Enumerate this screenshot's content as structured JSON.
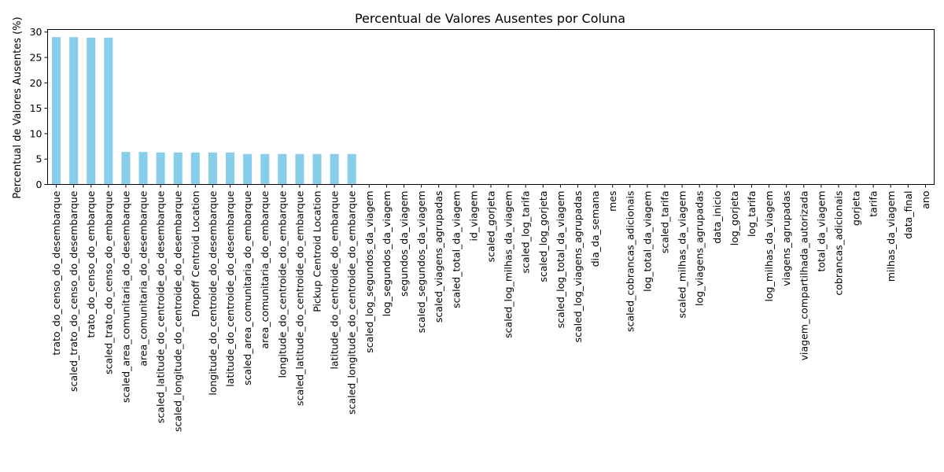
{
  "chart_data": {
    "type": "bar",
    "title": "Percentual de Valores Ausentes por Coluna",
    "xlabel": "",
    "ylabel": "Percentual de Valores Ausentes (%)",
    "ylim": [
      0,
      30.5
    ],
    "yticks": [
      0,
      5,
      10,
      15,
      20,
      25,
      30
    ],
    "grid": false,
    "bar_color": "#87CEEB",
    "categories": [
      "trato_do_censo_do_desembarque",
      "scaled_trato_do_censo_do_desembarque",
      "trato_do_censo_do_embarque",
      "scaled_trato_do_censo_do_embarque",
      "scaled_area_comunitaria_do_desembarque",
      "area_comunitaria_do_desembarque",
      "scaled_latitude_do_centroide_do_desembarque",
      "scaled_longitude_do_centroide_do_desembarque",
      "Dropoff Centroid Location",
      "longitude_do_centroide_do_desembarque",
      "latitude_do_centroide_do_desembarque",
      "scaled_area_comunitaria_do_embarque",
      "area_comunitaria_do_embarque",
      "longitude_do_centroide_do_embarque",
      "scaled_latitude_do_centroide_do_embarque",
      "Pickup Centroid Location",
      "latitude_do_centroide_do_embarque",
      "scaled_longitude_do_centroide_do_embarque",
      "scaled_log_segundos_da_viagem",
      "log_segundos_da_viagem",
      "segundos_da_viagem",
      "scaled_segundos_da_viagem",
      "scaled_viagens_agrupadas",
      "scaled_total_da_viagem",
      "id_viagem",
      "scaled_gorjeta",
      "scaled_log_milhas_da_viagem",
      "scaled_log_tarifa",
      "scaled_log_gorjeta",
      "scaled_log_total_da_viagem",
      "scaled_log_viagens_agrupadas",
      "dia_da_semana",
      "mes",
      "scaled_cobrancas_adicionais",
      "log_total_da_viagem",
      "scaled_tarifa",
      "scaled_milhas_da_viagem",
      "log_viagens_agrupadas",
      "data_inicio",
      "log_gorjeta",
      "log_tarifa",
      "log_milhas_da_viagem",
      "viagens_agrupadas",
      "viagem_compartilhada_autorizada",
      "total_da_viagem",
      "cobrancas_adicionais",
      "gorjeta",
      "tarifa",
      "milhas_da_viagem",
      "data_final",
      "ano"
    ],
    "values": [
      29.0,
      29.0,
      28.9,
      28.9,
      6.4,
      6.4,
      6.3,
      6.3,
      6.3,
      6.3,
      6.3,
      6.0,
      6.0,
      6.0,
      6.0,
      6.0,
      6.0,
      6.0,
      0,
      0,
      0,
      0,
      0,
      0,
      0,
      0,
      0,
      0,
      0,
      0,
      0,
      0,
      0,
      0,
      0,
      0,
      0,
      0,
      0,
      0,
      0,
      0,
      0,
      0,
      0,
      0,
      0,
      0,
      0,
      0,
      0
    ]
  }
}
